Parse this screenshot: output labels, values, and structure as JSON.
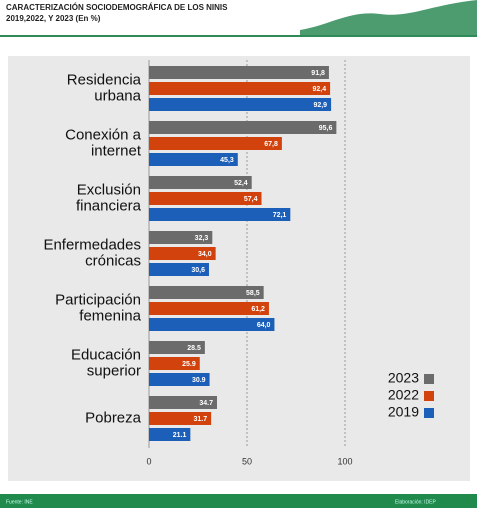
{
  "chart_data": {
    "type": "bar",
    "orientation": "horizontal",
    "title": "CARACTERIZACIÓN SOCIODEMOGRÁFICA DE LOS NINIS",
    "subtitle": "2019,2022, Y 2023 (En %)",
    "categories": [
      "Residencia\nurbana",
      "Conexión a\ninternet",
      "Exclusión\nfinanciera",
      "Enfermedades\ncrónicas",
      "Participación\nfemenina",
      "Educación\nsuperior",
      "Pobreza"
    ],
    "series": [
      {
        "name": "2023",
        "color": "#6b6b6b",
        "values": [
          91.8,
          95.6,
          52.4,
          32.3,
          58.5,
          28.5,
          34.7
        ],
        "value_labels": [
          "91,8",
          "95,6",
          "52,4",
          "32,3",
          "58,5",
          "28.5",
          "34.7"
        ]
      },
      {
        "name": "2022",
        "color": "#d2420c",
        "values": [
          92.4,
          67.8,
          57.4,
          34.0,
          61.2,
          25.9,
          31.7
        ],
        "value_labels": [
          "92,4",
          "67,8",
          "57,4",
          "34,0",
          "61,2",
          "25.9",
          "31.7"
        ]
      },
      {
        "name": "2019",
        "color": "#1c5fb8",
        "values": [
          92.9,
          45.3,
          72.1,
          30.6,
          64.0,
          30.9,
          21.1
        ],
        "value_labels": [
          "92,9",
          "45,3",
          "72,1",
          "30,6",
          "64,0",
          "30.9",
          "21.1"
        ]
      }
    ],
    "xlim": [
      0,
      100
    ],
    "xticks": [
      0,
      50,
      100
    ],
    "grid": true,
    "legend": "lower right",
    "source": "Fuente: INE",
    "credit": "Elaboración: IDEP"
  }
}
